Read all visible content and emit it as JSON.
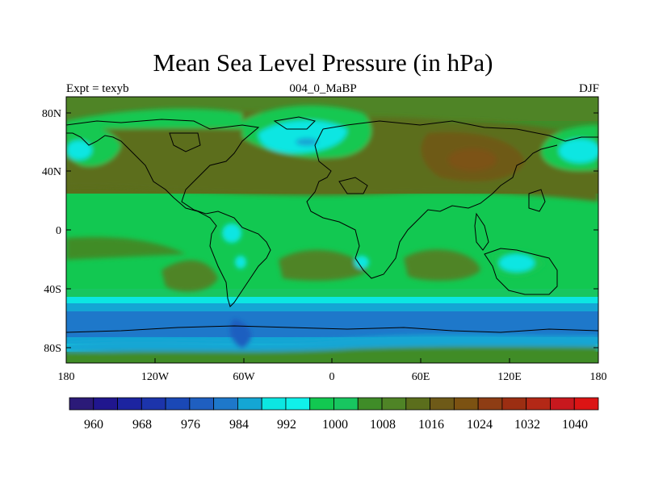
{
  "map": {
    "title": "Mean Sea Level Pressure (in hPa)",
    "left_label": "Expt = texyb",
    "center_label": "004_0_MaBP",
    "right_label": "DJF",
    "lat_ticks": [
      "80N",
      "40N",
      "0",
      "40S",
      "80S"
    ],
    "lon_ticks": [
      "180",
      "120W",
      "60W",
      "0",
      "60E",
      "120E",
      "180"
    ]
  },
  "colorbar": {
    "colors": [
      "#2b1a78",
      "#20168e",
      "#1c24a0",
      "#1c34ab",
      "#1a48b6",
      "#1f5fc0",
      "#1e78ca",
      "#14a6d4",
      "#0ce6e2",
      "#10f0ea",
      "#12c851",
      "#18c660",
      "#3f8c28",
      "#4f8426",
      "#5b6e1c",
      "#6e5a18",
      "#7c5212",
      "#8e3d14",
      "#9c2e12",
      "#b32816",
      "#c8181e",
      "#dc1414"
    ],
    "labels": [
      "960",
      "968",
      "976",
      "984",
      "992",
      "1000",
      "1008",
      "1016",
      "1024",
      "1032",
      "1040"
    ]
  },
  "chart_data": {
    "type": "heatmap",
    "title": "Mean Sea Level Pressure (in hPa)",
    "subtitle_left": "Expt = texyb",
    "subtitle_center": "004_0_MaBP",
    "subtitle_right": "DJF",
    "x_range": [
      -180,
      180
    ],
    "y_range": [
      -90,
      90
    ],
    "contour_levels_hPa": [
      960,
      964,
      968,
      972,
      976,
      980,
      984,
      988,
      992,
      996,
      1000,
      1004,
      1008,
      1012,
      1016,
      1020,
      1024,
      1028,
      1032,
      1036,
      1040
    ],
    "zonal_bands_hPa": [
      {
        "lat_from": 90,
        "lat_to": 72,
        "value": 1016
      },
      {
        "lat_from": 72,
        "lat_to": 58,
        "value": 1008
      },
      {
        "lat_from": 58,
        "lat_to": 45,
        "value": 1014
      },
      {
        "lat_from": 45,
        "lat_to": 20,
        "value": 1018
      },
      {
        "lat_from": 20,
        "lat_to": -20,
        "value": 1010
      },
      {
        "lat_from": -20,
        "lat_to": -38,
        "value": 1014
      },
      {
        "lat_from": -38,
        "lat_to": -48,
        "value": 1008
      },
      {
        "lat_from": -48,
        "lat_to": -55,
        "value": 1000
      },
      {
        "lat_from": -55,
        "lat_to": -72,
        "value": 986
      },
      {
        "lat_from": -72,
        "lat_to": -82,
        "value": 998
      },
      {
        "lat_from": -82,
        "lat_to": -90,
        "value": 1014
      }
    ],
    "features_hPa": [
      {
        "lon": 165,
        "lat": 50,
        "value": 1000
      },
      {
        "lon": -170,
        "lat": 50,
        "value": 1000
      },
      {
        "lon": -25,
        "lat": 60,
        "value": 998
      },
      {
        "lon": 95,
        "lat": 50,
        "value": 1026
      },
      {
        "lon": 140,
        "lat": -20,
        "value": 1002
      },
      {
        "lon": -55,
        "lat": 0,
        "value": 1002
      }
    ]
  }
}
